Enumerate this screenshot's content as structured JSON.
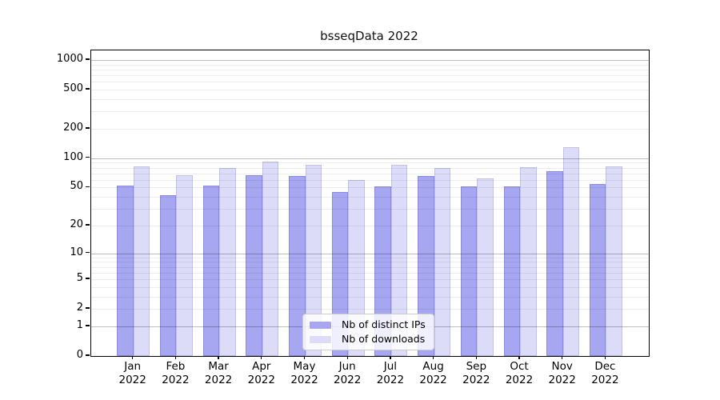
{
  "figure": {
    "title": "bsseqData 2022"
  },
  "chart_data": {
    "type": "bar",
    "title": "bsseqData 2022",
    "categories": [
      "Jan 2022",
      "Feb 2022",
      "Mar 2022",
      "Apr 2022",
      "May 2022",
      "Jun 2022",
      "Jul 2022",
      "Aug 2022",
      "Sep 2022",
      "Oct 2022",
      "Nov 2022",
      "Dec 2022"
    ],
    "months": [
      "Jan",
      "Feb",
      "Mar",
      "Apr",
      "May",
      "Jun",
      "Jul",
      "Aug",
      "Sep",
      "Oct",
      "Nov",
      "Dec"
    ],
    "year": "2022",
    "series": [
      {
        "name": "Nb of distinct IPs",
        "color": "#a6a6f1",
        "values": [
          52,
          42,
          52,
          67,
          66,
          45,
          51,
          66,
          51,
          51,
          74,
          54
        ]
      },
      {
        "name": "Nb of downloads",
        "color": "#dcdcf8",
        "values": [
          82,
          67,
          79,
          93,
          85,
          60,
          85,
          79,
          62,
          81,
          129,
          82
        ]
      }
    ],
    "xlabel": "",
    "ylabel": "",
    "y_axis": {
      "scale": "log10(value+1)",
      "tick_values": [
        0,
        1,
        2,
        5,
        10,
        20,
        50,
        100,
        200,
        500,
        1000
      ],
      "tick_labels": [
        "0",
        "1",
        "2",
        "5",
        "10",
        "20",
        "50",
        "100",
        "200",
        "500",
        "1000"
      ],
      "ylim": [
        0,
        1250
      ]
    },
    "grid": {
      "horizontal": true,
      "minor_log_gridlines": true,
      "major_decades": [
        1,
        10,
        100,
        1000
      ]
    },
    "legend": {
      "position": "bottom-center-inside"
    }
  },
  "legend": {
    "items": [
      {
        "label": "Nb of distinct IPs",
        "color": "#a6a6f1"
      },
      {
        "label": "Nb of downloads",
        "color": "#dcdcf8"
      }
    ]
  }
}
